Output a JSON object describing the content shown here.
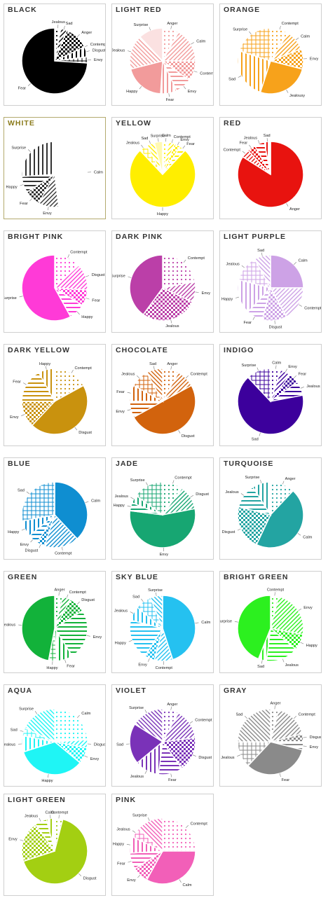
{
  "chart_data": [
    {
      "type": "pie",
      "title": "BLACK",
      "color": "#000000",
      "slices": [
        {
          "label": "Jealous",
          "value": 3
        },
        {
          "label": "Sad",
          "value": 3
        },
        {
          "label": "Anger",
          "value": 12
        },
        {
          "label": "Contempt",
          "value": 0
        },
        {
          "label": "Disgust",
          "value": 5
        },
        {
          "label": "Envy",
          "value": 3
        },
        {
          "label": "Fear",
          "value": 74
        }
      ]
    },
    {
      "type": "pie",
      "title": "LIGHT RED",
      "color": "#f29b9b",
      "slices": [
        {
          "label": "Anger",
          "value": 8
        },
        {
          "label": "Calm",
          "value": 17
        },
        {
          "label": "Contempt",
          "value": 10
        },
        {
          "label": "Envy",
          "value": 8
        },
        {
          "label": "Fear",
          "value": 8
        },
        {
          "label": "Happy",
          "value": 20
        },
        {
          "label": "Jealous",
          "value": 17
        },
        {
          "label": "Surprise",
          "value": 12
        }
      ]
    },
    {
      "type": "pie",
      "title": "ORANGE",
      "color": "#f7a21b",
      "slices": [
        {
          "label": "Contempt",
          "value": 9
        },
        {
          "label": "Calm",
          "value": 10
        },
        {
          "label": "Envy",
          "value": 10
        },
        {
          "label": "Jealousy",
          "value": 26
        },
        {
          "label": "Sad",
          "value": 25
        },
        {
          "label": "Surprise",
          "value": 20
        }
      ]
    },
    {
      "type": "pie",
      "title": "WHITE",
      "color": "#ffffff",
      "slices": [
        {
          "label": "Calm",
          "value": 48
        },
        {
          "label": "Envy",
          "value": 10
        },
        {
          "label": "Fear",
          "value": 8
        },
        {
          "label": "Happy",
          "value": 8
        },
        {
          "label": "Surprise",
          "value": 26
        }
      ]
    },
    {
      "type": "pie",
      "title": "YELLOW",
      "color": "#ffee00",
      "slices": [
        {
          "label": "Calm",
          "value": 3
        },
        {
          "label": "Contempt",
          "value": 3
        },
        {
          "label": "Envy",
          "value": 3
        },
        {
          "label": "Fear",
          "value": 3
        },
        {
          "label": "Happy",
          "value": 76
        },
        {
          "label": "Jealous",
          "value": 4
        },
        {
          "label": "Sad",
          "value": 4
        },
        {
          "label": "Surprise",
          "value": 4
        }
      ]
    },
    {
      "type": "pie",
      "title": "RED",
      "color": "#e8130f",
      "slices": [
        {
          "label": "Anger",
          "value": 84
        },
        {
          "label": "Contempt",
          "value": 4
        },
        {
          "label": "Fear",
          "value": 4
        },
        {
          "label": "Jealous",
          "value": 5
        },
        {
          "label": "Sad",
          "value": 3
        }
      ]
    },
    {
      "type": "pie",
      "title": "BRIGHT PINK",
      "color": "#ff3ad7",
      "slices": [
        {
          "label": "Contempt",
          "value": 13
        },
        {
          "label": "Disgust",
          "value": 13
        },
        {
          "label": "Fear",
          "value": 8
        },
        {
          "label": "Happy",
          "value": 8
        },
        {
          "label": "Surprise",
          "value": 58
        }
      ]
    },
    {
      "type": "pie",
      "title": "DARK PINK",
      "color": "#bb3fa8",
      "slices": [
        {
          "label": "Contempt",
          "value": 22
        },
        {
          "label": "Envy",
          "value": 10
        },
        {
          "label": "Jealous",
          "value": 28
        },
        {
          "label": "Surprise",
          "value": 40
        }
      ]
    },
    {
      "type": "pie",
      "title": "LIGHT PURPLE",
      "color": "#cda2e6",
      "slices": [
        {
          "label": "Calm",
          "value": 25
        },
        {
          "label": "Contempt",
          "value": 17
        },
        {
          "label": "Disgust",
          "value": 12
        },
        {
          "label": "Fear",
          "value": 8
        },
        {
          "label": "Happy",
          "value": 17
        },
        {
          "label": "Jealous",
          "value": 13
        },
        {
          "label": "Sad",
          "value": 8
        }
      ]
    },
    {
      "type": "pie",
      "title": "DARK YELLOW",
      "color": "#c9920e",
      "slices": [
        {
          "label": "Contempt",
          "value": 17
        },
        {
          "label": "Disgust",
          "value": 45
        },
        {
          "label": "Envy",
          "value": 13
        },
        {
          "label": "Fear",
          "value": 17
        },
        {
          "label": "Happy",
          "value": 8
        }
      ]
    },
    {
      "type": "pie",
      "title": "CHOCOLATE",
      "color": "#d2630d",
      "slices": [
        {
          "label": "Anger",
          "value": 8
        },
        {
          "label": "Contempt",
          "value": 9
        },
        {
          "label": "Disgust",
          "value": 50
        },
        {
          "label": "Envy",
          "value": 8
        },
        {
          "label": "Fear",
          "value": 8
        },
        {
          "label": "Jealous",
          "value": 9
        },
        {
          "label": "Sad",
          "value": 8
        }
      ]
    },
    {
      "type": "pie",
      "title": "INDIGO",
      "color": "#3c009c",
      "slices": [
        {
          "label": "Calm",
          "value": 5
        },
        {
          "label": "Envy",
          "value": 5
        },
        {
          "label": "Fear",
          "value": 5
        },
        {
          "label": "Jealous",
          "value": 7
        },
        {
          "label": "Sad",
          "value": 66
        },
        {
          "label": "Surprise",
          "value": 12
        }
      ]
    },
    {
      "type": "pie",
      "title": "BLUE",
      "color": "#0f8ed1",
      "slices": [
        {
          "label": "Calm",
          "value": 38
        },
        {
          "label": "Contempt",
          "value": 17
        },
        {
          "label": "Disgust",
          "value": 4
        },
        {
          "label": "Envy",
          "value": 5
        },
        {
          "label": "Happy",
          "value": 8
        },
        {
          "label": "Sad",
          "value": 28
        }
      ]
    },
    {
      "type": "pie",
      "title": "JADE",
      "color": "#17a672",
      "slices": [
        {
          "label": "Contempt",
          "value": 10
        },
        {
          "label": "Disgust",
          "value": 12
        },
        {
          "label": "Envy",
          "value": 55
        },
        {
          "label": "Happy",
          "value": 4
        },
        {
          "label": "Jealous",
          "value": 4
        },
        {
          "label": "Surprise",
          "value": 15
        }
      ]
    },
    {
      "type": "pie",
      "title": "TURQUOISE",
      "color": "#23a4a2",
      "slices": [
        {
          "label": "Anger",
          "value": 12
        },
        {
          "label": "Calm",
          "value": 45
        },
        {
          "label": "Disgust",
          "value": 22
        },
        {
          "label": "Jealous",
          "value": 12
        },
        {
          "label": "Surprise",
          "value": 9
        }
      ]
    },
    {
      "type": "pie",
      "title": "GREEN",
      "color": "#12b23a",
      "slices": [
        {
          "label": "Anger",
          "value": 4
        },
        {
          "label": "Contempt",
          "value": 4
        },
        {
          "label": "Disgust",
          "value": 8
        },
        {
          "label": "Envy",
          "value": 25
        },
        {
          "label": "Fear",
          "value": 8
        },
        {
          "label": "Happy",
          "value": 4
        },
        {
          "label": "Jealous",
          "value": 47
        }
      ]
    },
    {
      "type": "pie",
      "title": "SKY BLUE",
      "color": "#25c1f0",
      "slices": [
        {
          "label": "Calm",
          "value": 45
        },
        {
          "label": "Contempt",
          "value": 9
        },
        {
          "label": "Envy",
          "value": 5
        },
        {
          "label": "Happy",
          "value": 20
        },
        {
          "label": "Jealous",
          "value": 7
        },
        {
          "label": "Sad",
          "value": 8
        },
        {
          "label": "Surprise",
          "value": 6
        }
      ]
    },
    {
      "type": "pie",
      "title": "BRIGHT GREEN",
      "color": "#2cf01f",
      "slices": [
        {
          "label": "Contempt",
          "value": 4
        },
        {
          "label": "Envy",
          "value": 24
        },
        {
          "label": "Happy",
          "value": 8
        },
        {
          "label": "Jealous",
          "value": 16
        },
        {
          "label": "Sad",
          "value": 4
        },
        {
          "label": "Surprise",
          "value": 44
        }
      ]
    },
    {
      "type": "pie",
      "title": "AQUA",
      "color": "#1ff5f5",
      "slices": [
        {
          "label": "Calm",
          "value": 24
        },
        {
          "label": "Disgust",
          "value": 4
        },
        {
          "label": "Envy",
          "value": 8
        },
        {
          "label": "Happy",
          "value": 34
        },
        {
          "label": "Jealous",
          "value": 8
        },
        {
          "label": "Sad",
          "value": 4
        },
        {
          "label": "Surprise",
          "value": 18
        }
      ]
    },
    {
      "type": "pie",
      "title": "VIOLET",
      "color": "#7a32b8",
      "slices": [
        {
          "label": "Anger",
          "value": 8
        },
        {
          "label": "Contempt",
          "value": 15
        },
        {
          "label": "Disgust",
          "value": 17
        },
        {
          "label": "Fear",
          "value": 12
        },
        {
          "label": "Jealous",
          "value": 12
        },
        {
          "label": "Sad",
          "value": 20
        },
        {
          "label": "Surprise",
          "value": 16
        }
      ]
    },
    {
      "type": "pie",
      "title": "GRAY",
      "color": "#8a8a8a",
      "slices": [
        {
          "label": "Anger",
          "value": 4
        },
        {
          "label": "Contempt",
          "value": 17
        },
        {
          "label": "Disgust",
          "value": 4
        },
        {
          "label": "Envy",
          "value": 4
        },
        {
          "label": "Fear",
          "value": 33
        },
        {
          "label": "Jealous",
          "value": 13
        },
        {
          "label": "Sad",
          "value": 25
        }
      ]
    },
    {
      "type": "pie",
      "title": "LIGHT GREEN",
      "color": "#a3cf12",
      "slices": [
        {
          "label": "Contempt",
          "value": 4
        },
        {
          "label": "Disgust",
          "value": 66
        },
        {
          "label": "Envy",
          "value": 20
        },
        {
          "label": "Jealous",
          "value": 6
        },
        {
          "label": "Calm",
          "value": 4
        }
      ]
    },
    {
      "type": "pie",
      "title": "PINK",
      "color": "#f25fb8",
      "slices": [
        {
          "label": "Contempt",
          "value": 25
        },
        {
          "label": "Calm",
          "value": 33
        },
        {
          "label": "Envy",
          "value": 8
        },
        {
          "label": "Fear",
          "value": 8
        },
        {
          "label": "Happy",
          "value": 8
        },
        {
          "label": "Jealous",
          "value": 5
        },
        {
          "label": "Surprise",
          "value": 13
        }
      ]
    }
  ]
}
